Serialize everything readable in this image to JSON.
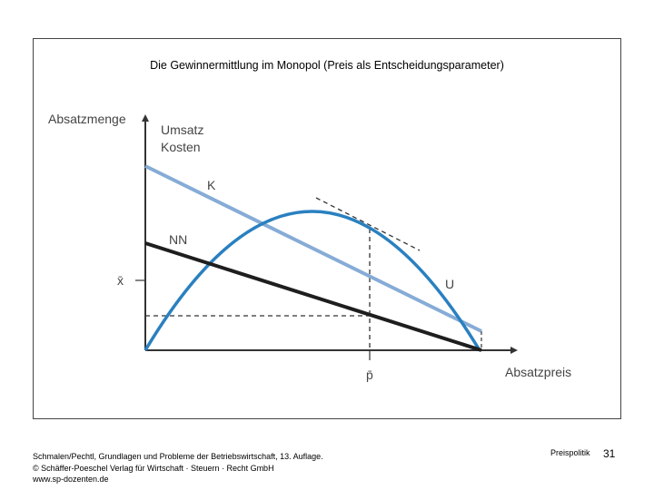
{
  "slide": {
    "title": "Die Gewinnermittlung im Monopol (Preis als Entscheidungsparameter)",
    "section": "Preispolitik",
    "page_number": "31",
    "footer_lines": [
      "Schmalen/Pechtl, Grundlagen und Probleme der Betriebswirtschaft, 13. Auflage.",
      "© Schäffer-Poeschel Verlag für Wirtschaft · Steuern · Recht GmbH",
      "www.sp-dozenten.de"
    ]
  },
  "diagram": {
    "y_axis_label": "Absatzmenge",
    "y_axis_label_2a": "Umsatz",
    "y_axis_label_2b": "Kosten",
    "x_axis_label": "Absatzpreis",
    "x_bar_label": "x̄",
    "p_bar_label": "p̄",
    "curve_labels": {
      "K": "K",
      "NN": "NN",
      "U": "U"
    },
    "colors": {
      "cost": "#86acd6",
      "revenue": "#2a80c0",
      "demand": "#1e1e1e",
      "axis": "#333333"
    }
  }
}
